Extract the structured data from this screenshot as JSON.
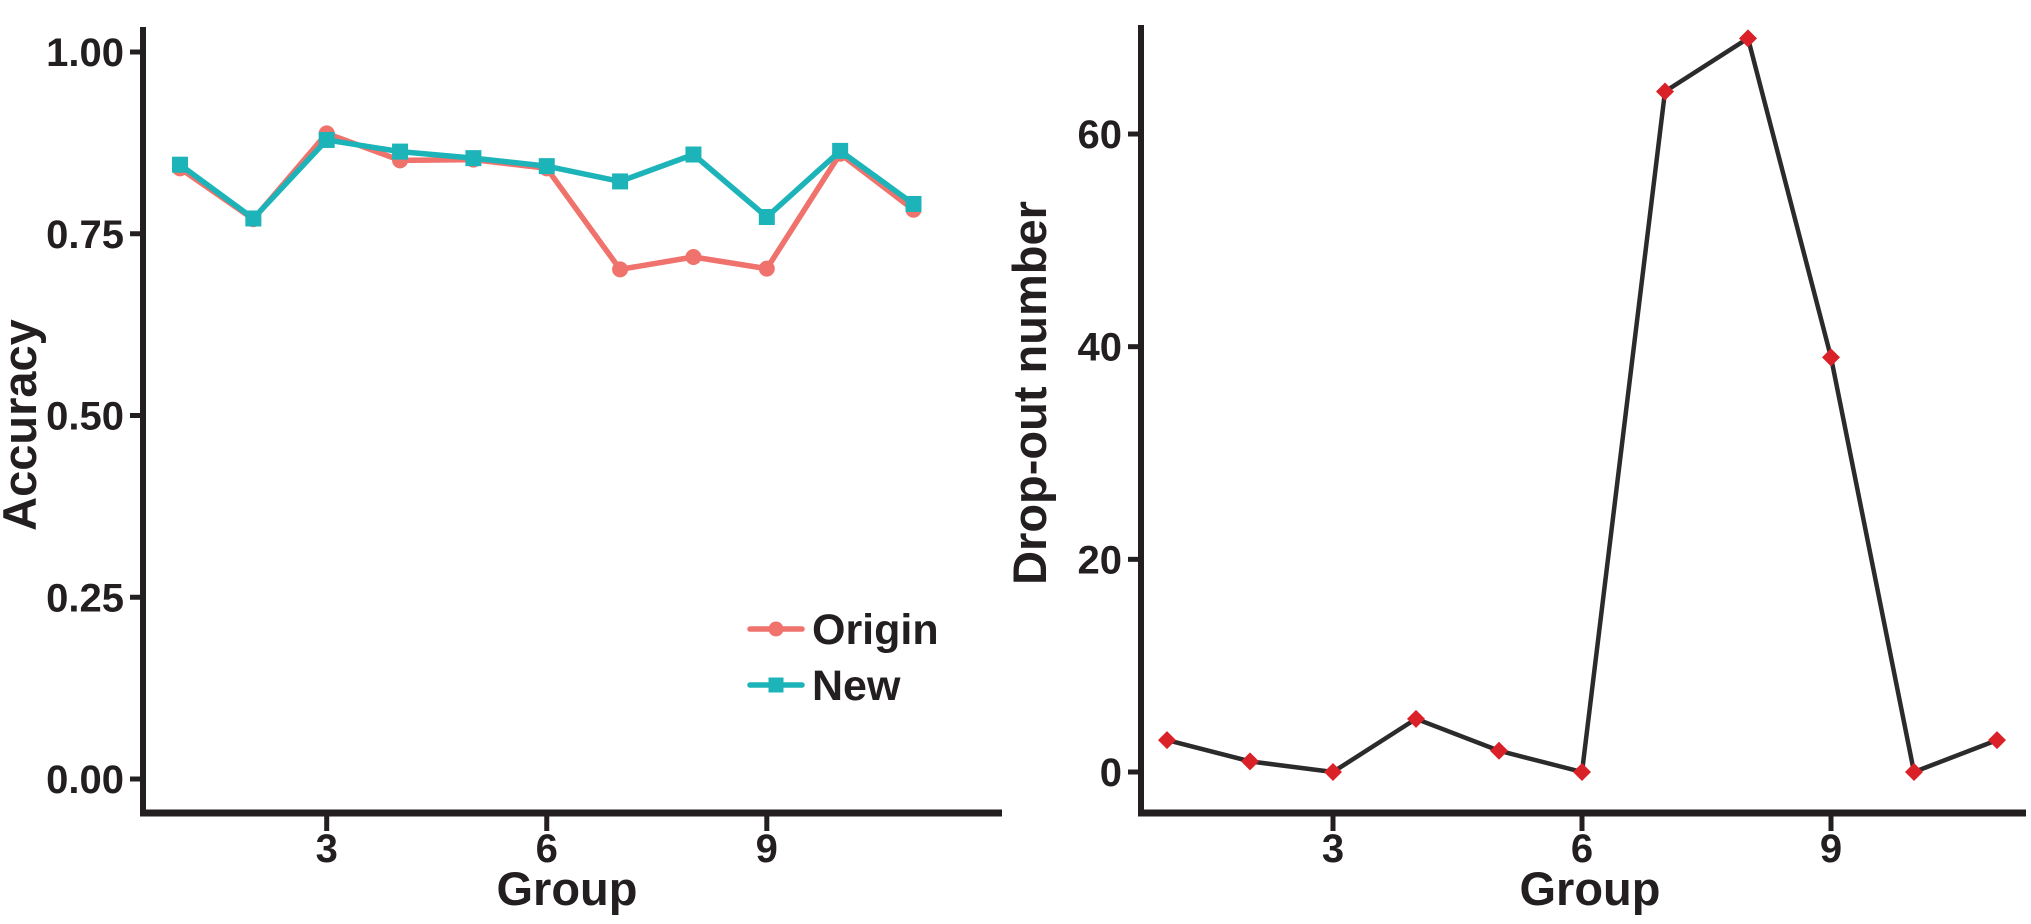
{
  "colors": {
    "axis": "#231f20",
    "text": "#231f20",
    "background": "#ffffff",
    "origin_series": "#ef726c",
    "new_series": "#1db4b9",
    "dropout_line": "#2b2b2b",
    "dropout_point": "#da2128"
  },
  "chart_data": [
    {
      "type": "line",
      "title": "",
      "xlabel": "Group",
      "ylabel": "Accuracy",
      "x": [
        1,
        2,
        3,
        4,
        5,
        6,
        7,
        8,
        9,
        10,
        11
      ],
      "xtick_labels": [
        "3",
        "6",
        "9"
      ],
      "ytick_labels": [
        "0.00",
        "0.25",
        "0.50",
        "0.75",
        "1.00"
      ],
      "xlim": [
        0.5,
        12.2
      ],
      "ylim": [
        0,
        1.03
      ],
      "grid": false,
      "legend": {
        "position": "inside-lower-right",
        "entries": [
          "Origin",
          "New"
        ]
      },
      "series": [
        {
          "name": "Origin",
          "color": "#ef726c",
          "marker": "circle",
          "values": [
            0.84,
            0.77,
            0.888,
            0.851,
            0.852,
            0.84,
            0.701,
            0.718,
            0.702,
            0.86,
            0.783
          ]
        },
        {
          "name": "New",
          "color": "#1db4b9",
          "marker": "square",
          "values": [
            0.845,
            0.771,
            0.879,
            0.863,
            0.854,
            0.843,
            0.822,
            0.859,
            0.773,
            0.864,
            0.791
          ]
        }
      ]
    },
    {
      "type": "line",
      "title": "",
      "xlabel": "Group",
      "ylabel": "Drop-out number",
      "x": [
        1,
        2,
        3,
        4,
        5,
        6,
        7,
        8,
        9,
        10,
        11
      ],
      "xtick_labels": [
        "3",
        "6",
        "9"
      ],
      "ytick_labels": [
        "0",
        "20",
        "40",
        "60"
      ],
      "xlim": [
        0.5,
        11.5
      ],
      "ylim": [
        0,
        70
      ],
      "grid": false,
      "legend": null,
      "series": [
        {
          "name": "Drop-out number",
          "color": "#2b2b2b",
          "marker": "diamond",
          "marker_color": "#da2128",
          "values": [
            3,
            1,
            0,
            5,
            2,
            0,
            64,
            69,
            39,
            0,
            3
          ]
        }
      ]
    }
  ]
}
